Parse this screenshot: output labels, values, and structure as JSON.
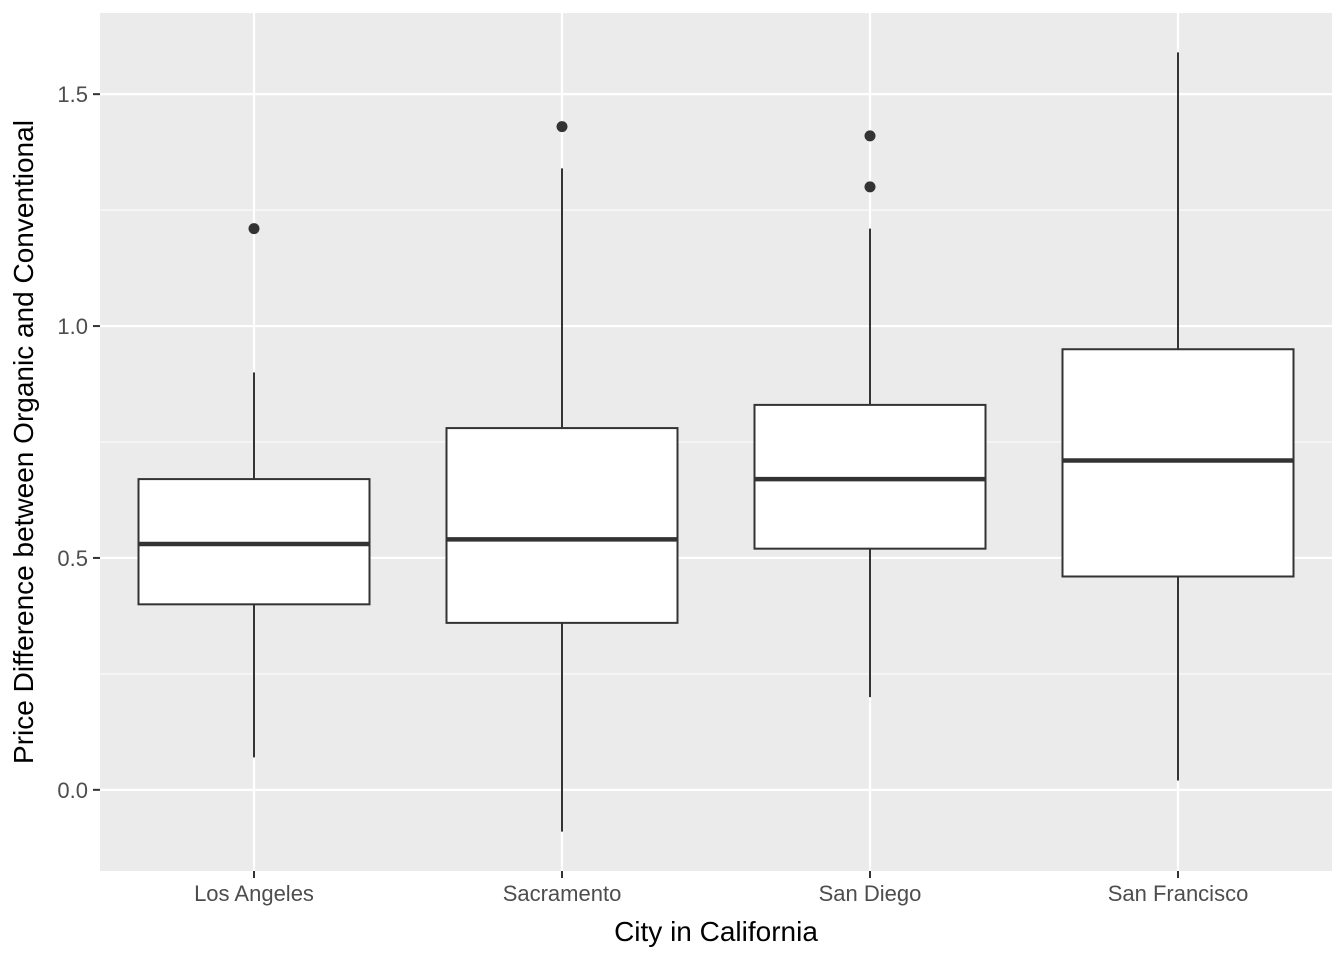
{
  "chart_data": {
    "type": "box",
    "title": "",
    "xlabel": "City in California",
    "ylabel": "Price Difference between Organic and Conventional",
    "ylim": [
      -0.175,
      1.675
    ],
    "yticks": [
      0.0,
      0.5,
      1.0,
      1.5
    ],
    "ytick_labels": [
      "0.0",
      "0.5",
      "1.0",
      "1.5"
    ],
    "minor_grid": [
      0.25,
      0.75,
      1.25
    ],
    "grid": true,
    "legend": "none",
    "categories": [
      "Los Angeles",
      "Sacramento",
      "San Diego",
      "San Francisco"
    ],
    "boxes": [
      {
        "category": "Los Angeles",
        "lower_whisker": 0.07,
        "q1": 0.4,
        "median": 0.53,
        "q3": 0.67,
        "upper_whisker": 0.9,
        "outliers": [
          1.21
        ]
      },
      {
        "category": "Sacramento",
        "lower_whisker": -0.09,
        "q1": 0.36,
        "median": 0.54,
        "q3": 0.78,
        "upper_whisker": 1.34,
        "outliers": [
          1.43
        ]
      },
      {
        "category": "San Diego",
        "lower_whisker": 0.2,
        "q1": 0.52,
        "median": 0.67,
        "q3": 0.83,
        "upper_whisker": 1.21,
        "outliers": [
          1.3,
          1.41
        ]
      },
      {
        "category": "San Francisco",
        "lower_whisker": 0.02,
        "q1": 0.46,
        "median": 0.71,
        "q3": 0.95,
        "upper_whisker": 1.59,
        "outliers": []
      }
    ],
    "colors": {
      "panel_background": "#ebebeb",
      "grid_major": "#ffffff",
      "box_fill": "#ffffff",
      "box_line": "#333333",
      "tick_text": "#4d4d4d",
      "axis_title": "#000000"
    }
  }
}
